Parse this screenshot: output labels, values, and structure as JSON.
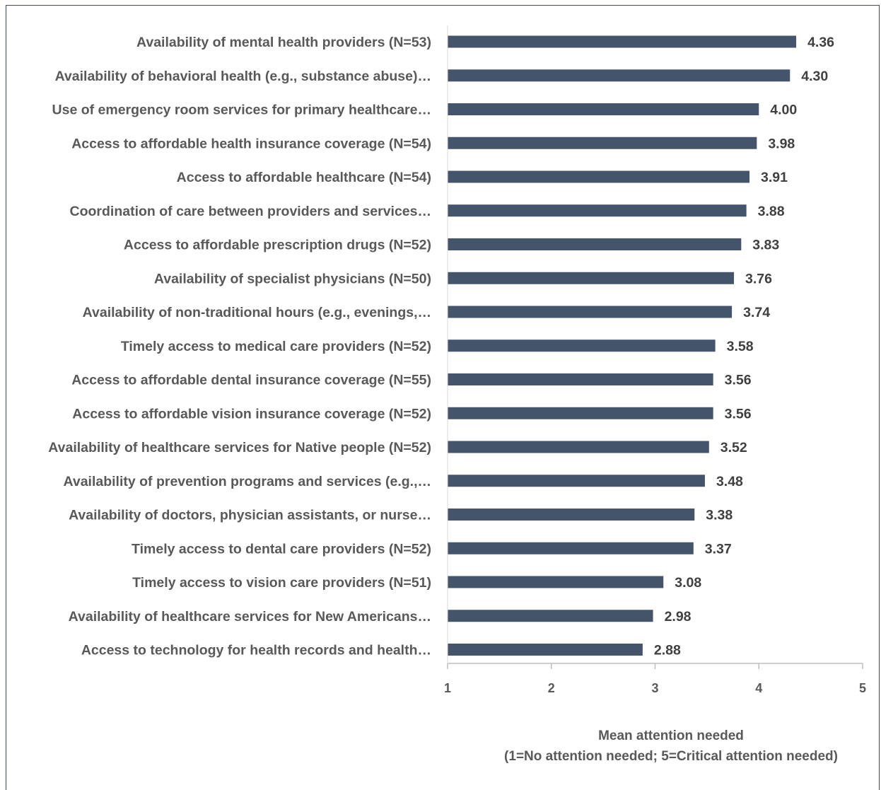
{
  "chart_data": {
    "type": "bar",
    "orientation": "horizontal",
    "categories": [
      "Availability of mental health providers (N=53)",
      "Availability of behavioral health (e.g., substance abuse)…",
      "Use of emergency room services for primary healthcare…",
      "Access to affordable health insurance coverage (N=54)",
      "Access to affordable healthcare (N=54)",
      "Coordination of care between providers and services…",
      "Access to affordable prescription drugs (N=52)",
      "Availability of specialist physicians (N=50)",
      "Availability of non-traditional hours (e.g., evenings,…",
      "Timely access to medical care providers (N=52)",
      "Access to affordable dental insurance coverage (N=55)",
      "Access to affordable vision insurance coverage (N=52)",
      "Availability of healthcare services for Native people (N=52)",
      "Availability of prevention programs and services (e.g.,…",
      "Availability of doctors, physician assistants, or nurse…",
      "Timely access to dental care providers (N=52)",
      "Timely access to vision care providers (N=51)",
      "Availability of healthcare services for New Americans…",
      "Access to technology for health records and health…"
    ],
    "values": [
      4.36,
      4.3,
      4.0,
      3.98,
      3.91,
      3.88,
      3.83,
      3.76,
      3.74,
      3.58,
      3.56,
      3.56,
      3.52,
      3.48,
      3.38,
      3.37,
      3.08,
      2.98,
      2.88
    ],
    "value_labels": [
      "4.36",
      "4.30",
      "4.00",
      "3.98",
      "3.91",
      "3.88",
      "3.83",
      "3.76",
      "3.74",
      "3.58",
      "3.56",
      "3.56",
      "3.52",
      "3.48",
      "3.38",
      "3.37",
      "3.08",
      "2.98",
      "2.88"
    ],
    "xlim": [
      1,
      5
    ],
    "xticks": [
      "1",
      "2",
      "3",
      "4",
      "5"
    ],
    "xlabel_line1": "Mean attention needed",
    "xlabel_line2": "(1=No attention needed; 5=Critical attention needed)",
    "bar_color": "#44546a",
    "grid": false
  }
}
